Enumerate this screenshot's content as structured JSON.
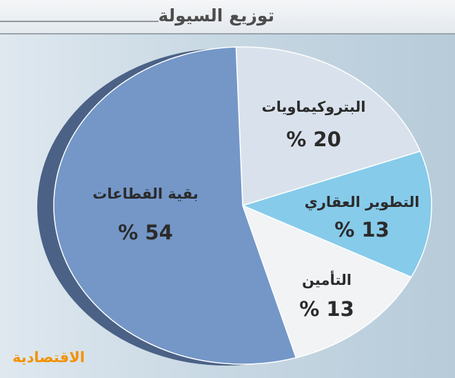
{
  "chart_data": {
    "type": "pie",
    "title": "توزيع السيولة",
    "slices": [
      {
        "label": "البتروكيماويات",
        "value": 20,
        "value_label": "% 20",
        "color": "#d9e2ec"
      },
      {
        "label": "التطوير العقاري",
        "value": 13,
        "value_label": "% 13",
        "color": "#86cbea"
      },
      {
        "label": "التأمين",
        "value": 13,
        "value_label": "% 13",
        "color": "#f1f3f5"
      },
      {
        "label": "بقية القطاعات",
        "value": 54,
        "value_label": "% 54",
        "color": "#7497c8"
      }
    ],
    "depth_color": "#4b6286",
    "legend": "none"
  },
  "brand": {
    "label": "الاقتصادية",
    "color": "#f39200"
  }
}
